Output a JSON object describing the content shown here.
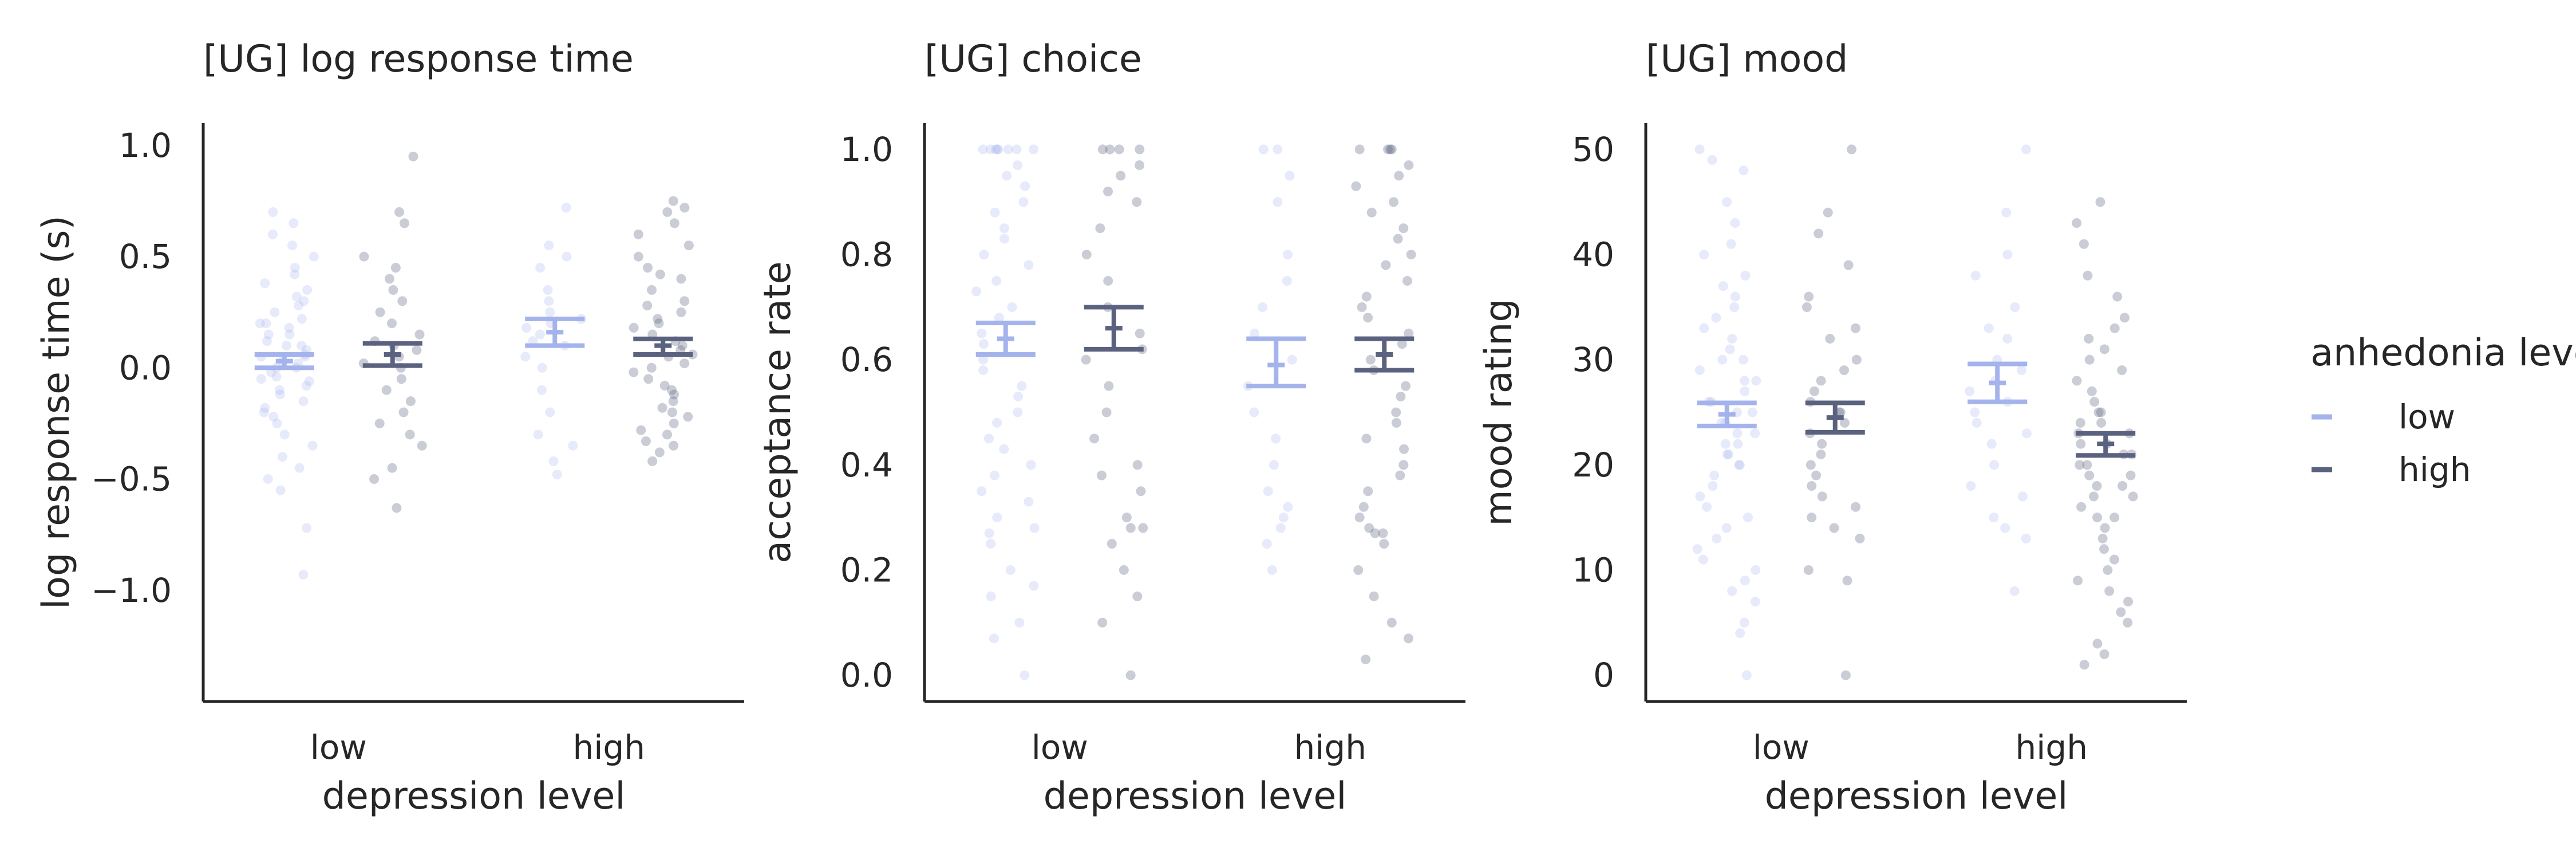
{
  "colors": {
    "low": "#a4b3ec",
    "high": "#5a627f",
    "axis": "#262626",
    "text": "#262626"
  },
  "legend": {
    "title": "anhedonia level",
    "entries": [
      {
        "label": "low",
        "color": "#a4b3ec"
      },
      {
        "label": "high",
        "color": "#5a627f"
      }
    ]
  },
  "chart_data": [
    {
      "type": "scatter",
      "title": "[UG] log response time",
      "xlabel": "depression level",
      "ylabel": "log response time (s)",
      "categories": [
        "low",
        "high"
      ],
      "hue": [
        "low",
        "high"
      ],
      "ylim": [
        -1.5,
        1.1
      ],
      "yticks": [
        -1.0,
        -0.5,
        0.0,
        0.5,
        1.0
      ],
      "ytick_labels": [
        "−1.0",
        "−0.5",
        "0.0",
        "0.5",
        "1.0"
      ],
      "series": [
        {
          "name": "low",
          "means": [
            0.03,
            0.16
          ],
          "ci": [
            [
              0.0,
              0.06
            ],
            [
              0.1,
              0.22
            ]
          ],
          "points": [
            [
              0.65,
              0.6,
              0.55,
              0.5,
              0.45,
              0.42,
              0.38,
              0.35,
              0.32,
              0.3,
              0.28,
              0.25,
              0.22,
              0.2,
              0.18,
              0.15,
              0.12,
              0.1,
              0.08,
              0.06,
              0.05,
              0.03,
              0.02,
              0.0,
              -0.02,
              -0.04,
              -0.06,
              -0.08,
              -0.1,
              -0.12,
              -0.15,
              -0.18,
              -0.2,
              -0.22,
              -0.25,
              -0.3,
              -0.35,
              -0.4,
              -0.45,
              -0.5,
              -0.55,
              -0.72,
              -0.93,
              0.7,
              0.1,
              0.05,
              0.0,
              -0.05,
              0.15,
              0.2
            ],
            [
              0.72,
              0.55,
              0.5,
              0.45,
              0.35,
              0.3,
              0.25,
              0.22,
              0.2,
              0.18,
              0.15,
              0.12,
              0.1,
              0.05,
              0.0,
              -0.1,
              -0.2,
              -0.3,
              -0.35,
              -0.42,
              -0.48
            ]
          ]
        },
        {
          "name": "high",
          "means": [
            0.06,
            0.1
          ],
          "ci": [
            [
              0.01,
              0.11
            ],
            [
              0.06,
              0.13
            ]
          ],
          "points": [
            [
              0.95,
              0.7,
              0.65,
              0.5,
              0.45,
              0.4,
              0.35,
              0.3,
              0.25,
              0.2,
              0.15,
              0.12,
              0.1,
              0.08,
              0.05,
              0.02,
              0.0,
              -0.05,
              -0.1,
              -0.15,
              -0.2,
              -0.25,
              -0.3,
              -0.35,
              -0.45,
              -0.5,
              -0.63
            ],
            [
              0.75,
              0.72,
              0.7,
              0.65,
              0.6,
              0.55,
              0.5,
              0.45,
              0.42,
              0.4,
              0.35,
              0.3,
              0.28,
              0.25,
              0.22,
              0.2,
              0.18,
              0.15,
              0.12,
              0.1,
              0.08,
              0.06,
              0.05,
              0.02,
              0.0,
              -0.02,
              -0.05,
              -0.08,
              -0.1,
              -0.12,
              -0.15,
              -0.18,
              -0.2,
              -0.22,
              -0.25,
              -0.28,
              -0.3,
              -0.33,
              -0.35,
              -0.38,
              -0.42
            ]
          ]
        }
      ]
    },
    {
      "type": "scatter",
      "title": "[UG] choice",
      "xlabel": "depression level",
      "ylabel": "acceptance rate",
      "categories": [
        "low",
        "high"
      ],
      "hue": [
        "low",
        "high"
      ],
      "ylim": [
        -0.05,
        1.05
      ],
      "yticks": [
        0.0,
        0.2,
        0.4,
        0.6,
        0.8,
        1.0
      ],
      "ytick_labels": [
        "0.0",
        "0.2",
        "0.4",
        "0.6",
        "0.8",
        "1.0"
      ],
      "series": [
        {
          "name": "low",
          "means": [
            0.64,
            0.59
          ],
          "ci": [
            [
              0.61,
              0.67
            ],
            [
              0.55,
              0.64
            ]
          ],
          "points": [
            [
              1.0,
              1.0,
              1.0,
              1.0,
              1.0,
              1.0,
              1.0,
              1.0,
              0.97,
              0.95,
              0.93,
              0.9,
              0.88,
              0.85,
              0.83,
              0.8,
              0.78,
              0.75,
              0.73,
              0.7,
              0.68,
              0.65,
              0.63,
              0.6,
              0.58,
              0.55,
              0.53,
              0.5,
              0.48,
              0.45,
              0.43,
              0.4,
              0.38,
              0.35,
              0.33,
              0.3,
              0.28,
              0.27,
              0.25,
              0.2,
              0.17,
              0.15,
              0.1,
              0.07,
              0.0
            ],
            [
              1.0,
              1.0,
              0.95,
              0.9,
              0.8,
              0.75,
              0.7,
              0.65,
              0.6,
              0.55,
              0.5,
              0.45,
              0.4,
              0.35,
              0.32,
              0.3,
              0.28,
              0.25,
              0.2
            ]
          ]
        },
        {
          "name": "high",
          "means": [
            0.66,
            0.61
          ],
          "ci": [
            [
              0.62,
              0.7
            ],
            [
              0.58,
              0.64
            ]
          ],
          "points": [
            [
              1.0,
              1.0,
              1.0,
              1.0,
              0.97,
              0.95,
              0.92,
              0.9,
              0.85,
              0.8,
              0.75,
              0.7,
              0.65,
              0.62,
              0.6,
              0.55,
              0.5,
              0.45,
              0.4,
              0.38,
              0.35,
              0.3,
              0.28,
              0.28,
              0.25,
              0.2,
              0.15,
              0.1,
              0.0
            ],
            [
              1.0,
              1.0,
              1.0,
              1.0,
              0.97,
              0.95,
              0.93,
              0.9,
              0.88,
              0.85,
              0.83,
              0.8,
              0.78,
              0.75,
              0.72,
              0.7,
              0.68,
              0.65,
              0.63,
              0.6,
              0.58,
              0.55,
              0.53,
              0.5,
              0.48,
              0.45,
              0.43,
              0.4,
              0.38,
              0.35,
              0.32,
              0.3,
              0.28,
              0.27,
              0.27,
              0.25,
              0.2,
              0.15,
              0.1,
              0.07,
              0.03
            ]
          ]
        }
      ]
    },
    {
      "type": "scatter",
      "title": "[UG] mood",
      "xlabel": "depression level",
      "ylabel": "mood rating",
      "categories": [
        "low",
        "high"
      ],
      "hue": [
        "low",
        "high"
      ],
      "ylim": [
        -2.5,
        52.5
      ],
      "yticks": [
        0,
        10,
        20,
        30,
        40,
        50
      ],
      "ytick_labels": [
        "0",
        "10",
        "20",
        "30",
        "40",
        "50"
      ],
      "series": [
        {
          "name": "low",
          "means": [
            24.8,
            27.8
          ],
          "ci": [
            [
              23.7,
              25.9
            ],
            [
              26.0,
              29.6
            ]
          ],
          "points": [
            [
              50,
              49,
              48,
              45,
              43,
              41,
              40,
              38,
              37,
              36,
              35,
              34,
              33,
              32,
              31,
              30,
              30,
              29,
              28,
              28,
              27,
              26,
              26,
              25,
              25,
              24,
              24,
              23,
              23,
              22,
              22,
              21,
              21,
              20,
              20,
              19,
              18,
              17,
              16,
              15,
              14,
              13,
              12,
              11,
              10,
              9,
              8,
              7,
              5,
              4,
              0
            ],
            [
              50,
              44,
              40,
              38,
              35,
              33,
              32,
              30,
              29,
              28,
              27,
              26,
              25,
              24,
              23,
              22,
              20,
              18,
              17,
              15,
              14,
              13,
              8
            ]
          ]
        },
        {
          "name": "high",
          "means": [
            24.5,
            22.0
          ],
          "ci": [
            [
              23.1,
              25.9
            ],
            [
              20.9,
              23.0
            ]
          ],
          "points": [
            [
              50,
              44,
              42,
              39,
              36,
              35,
              33,
              32,
              30,
              29,
              28,
              27,
              26,
              25,
              25,
              24,
              23,
              22,
              21,
              20,
              19,
              18,
              17,
              16,
              15,
              14,
              13,
              10,
              9,
              0
            ],
            [
              45,
              43,
              41,
              38,
              36,
              34,
              33,
              32,
              31,
              30,
              29,
              28,
              27,
              26,
              25,
              25,
              24,
              24,
              23,
              23,
              22,
              22,
              21,
              21,
              20,
              20,
              19,
              19,
              18,
              18,
              17,
              17,
              16,
              15,
              15,
              14,
              13,
              12,
              11,
              10,
              9,
              8,
              7,
              6,
              5,
              3,
              2,
              1
            ]
          ]
        }
      ]
    }
  ]
}
